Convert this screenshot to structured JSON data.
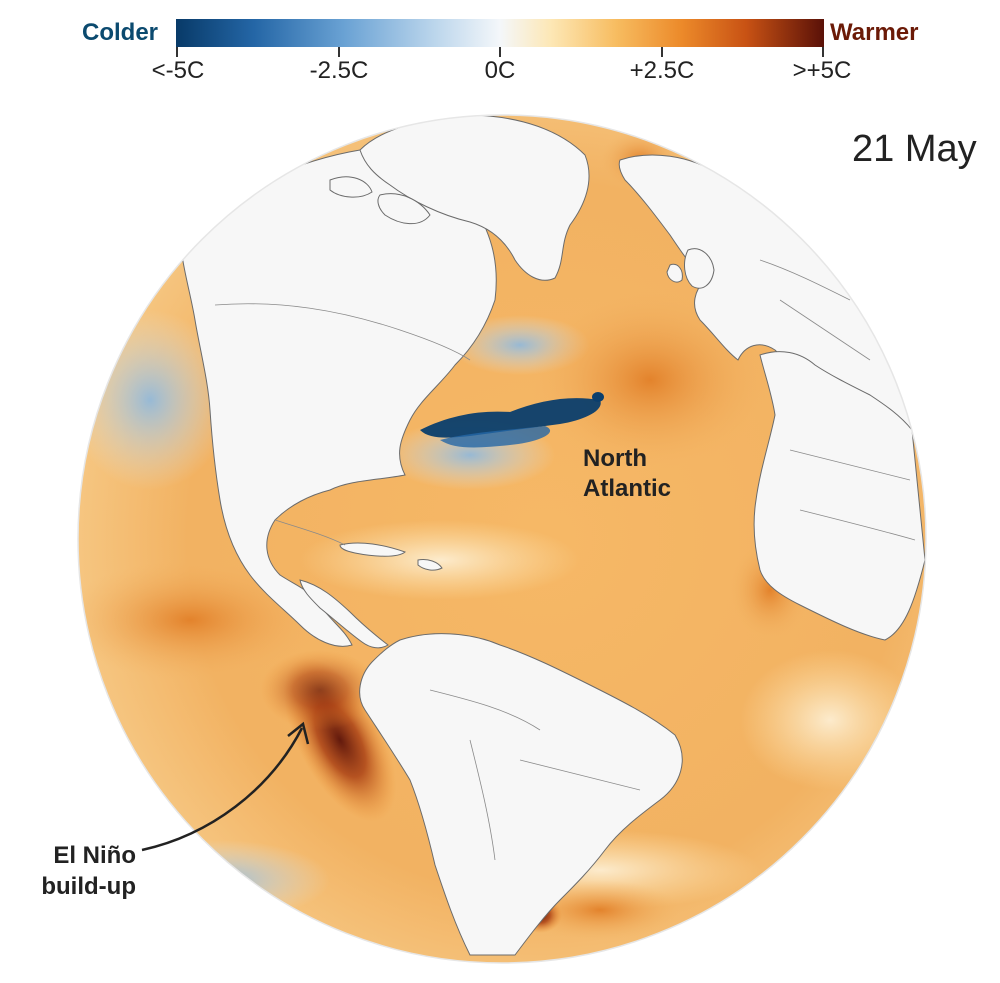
{
  "legend": {
    "colder_label": "Colder",
    "warmer_label": "Warmer",
    "ticks": [
      "<-5C",
      "-2.5C",
      "0C",
      "+2.5C",
      ">+5C"
    ],
    "tick_values": [
      -5,
      -2.5,
      0,
      2.5,
      5
    ],
    "colors": [
      "#083a68",
      "#2466a6",
      "#6aa2d4",
      "#bcd6ec",
      "#f4f7fa",
      "#fde7b4",
      "#f7bc60",
      "#ec8a2a",
      "#c85214",
      "#5a1108"
    ]
  },
  "map": {
    "date": "21 May",
    "projection": "orthographic",
    "labels": {
      "north_atlantic": [
        "North",
        "Atlantic"
      ],
      "el_nino": [
        "El Niño",
        "build-up"
      ]
    },
    "colors": {
      "ocean_warm": "#f3b463",
      "ocean_hot": "#c85214",
      "ocean_very_hot": "#5a1108",
      "ocean_cold": "#6aa2d4",
      "ocean_very_cold": "#083a68",
      "land": "#f7f7f7",
      "border": "#6b6b6b"
    }
  }
}
